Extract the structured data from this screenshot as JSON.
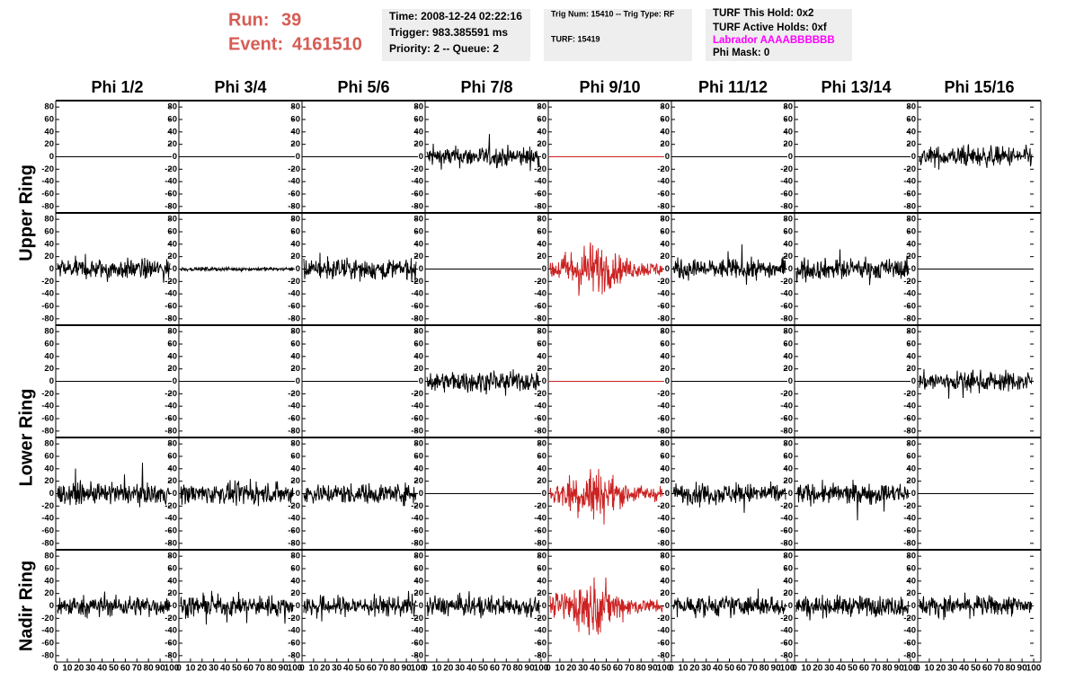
{
  "header": {
    "run_label": "Run:",
    "run": "39",
    "event_label": "Event:",
    "event": "4161510",
    "color": "#d65c55"
  },
  "info_boxes": [
    {
      "lines": [
        {
          "text": "Time: 2008-12-24 02:22:16"
        },
        {
          "text": "Trigger: 983.385591 ms"
        },
        {
          "text": "Priority: 2 -- Queue: 2"
        }
      ]
    },
    {
      "lines": [
        {
          "text": "Trig Num: 15410 -- Trig Type: RF"
        },
        {
          "text": "TURF: 15419"
        }
      ]
    },
    {
      "lines": [
        {
          "text": "TURF This Hold: 0x2"
        },
        {
          "text": "TURF Active Holds: 0xf"
        },
        {
          "text": "Labrador AAAABBBBBB",
          "color": "#ff00ff"
        },
        {
          "text": "Phi Mask: 0"
        }
      ]
    }
  ],
  "columns": [
    "Phi 1/2",
    "Phi 3/4",
    "Phi 5/6",
    "Phi 7/8",
    "Phi 9/10",
    "Phi 11/12",
    "Phi 13/14",
    "Phi 15/16"
  ],
  "rings": [
    "Upper Ring",
    "Lower Ring",
    "Nadir Ring"
  ],
  "rows": [
    {
      "ring": 0,
      "traces": [
        {
          "style": "flat",
          "color": "#000000"
        },
        {
          "style": "flat",
          "color": "#000000"
        },
        {
          "style": "flat",
          "color": "#000000"
        },
        {
          "style": "noise",
          "color": "#000000"
        },
        {
          "style": "flat",
          "color": "#cc2222"
        },
        {
          "style": "flat",
          "color": "#000000"
        },
        {
          "style": "flat",
          "color": "#000000"
        },
        {
          "style": "noise",
          "color": "#000000"
        }
      ]
    },
    {
      "ring": 0,
      "traces": [
        {
          "style": "noise",
          "color": "#000000"
        },
        {
          "style": "quiet",
          "color": "#000000"
        },
        {
          "style": "noise",
          "color": "#000000"
        },
        {
          "style": "flat",
          "color": "#000000"
        },
        {
          "style": "burst",
          "color": "#cc2222"
        },
        {
          "style": "noise",
          "color": "#000000"
        },
        {
          "style": "noise",
          "color": "#000000"
        },
        {
          "style": "flat",
          "color": "#000000"
        }
      ]
    },
    {
      "ring": 1,
      "traces": [
        {
          "style": "flat",
          "color": "#000000"
        },
        {
          "style": "flat",
          "color": "#000000"
        },
        {
          "style": "flat",
          "color": "#000000"
        },
        {
          "style": "noise",
          "color": "#000000"
        },
        {
          "style": "flat",
          "color": "#cc2222"
        },
        {
          "style": "flat",
          "color": "#000000"
        },
        {
          "style": "flat",
          "color": "#000000"
        },
        {
          "style": "noise",
          "color": "#000000"
        }
      ]
    },
    {
      "ring": 1,
      "traces": [
        {
          "style": "noise",
          "color": "#000000"
        },
        {
          "style": "noise",
          "color": "#000000"
        },
        {
          "style": "noise",
          "color": "#000000"
        },
        {
          "style": "flat",
          "color": "#000000"
        },
        {
          "style": "burst",
          "color": "#cc2222"
        },
        {
          "style": "noise",
          "color": "#000000"
        },
        {
          "style": "noise",
          "color": "#000000"
        },
        {
          "style": "flat",
          "color": "#000000"
        }
      ]
    },
    {
      "ring": 2,
      "traces": [
        {
          "style": "noise",
          "color": "#000000"
        },
        {
          "style": "noise",
          "color": "#000000"
        },
        {
          "style": "noise",
          "color": "#000000"
        },
        {
          "style": "noise",
          "color": "#000000"
        },
        {
          "style": "burst",
          "color": "#cc2222"
        },
        {
          "style": "noise",
          "color": "#000000"
        },
        {
          "style": "noise",
          "color": "#000000"
        },
        {
          "style": "noise",
          "color": "#000000"
        }
      ]
    }
  ],
  "axes": {
    "ylim": [
      -86,
      86
    ],
    "yticks": [
      -80,
      -60,
      -40,
      -20,
      0,
      20,
      40,
      60,
      80
    ],
    "xlim": [
      0,
      100
    ],
    "xticks": [
      0,
      10,
      20,
      30,
      40,
      50,
      60,
      70,
      80,
      90,
      100
    ]
  }
}
